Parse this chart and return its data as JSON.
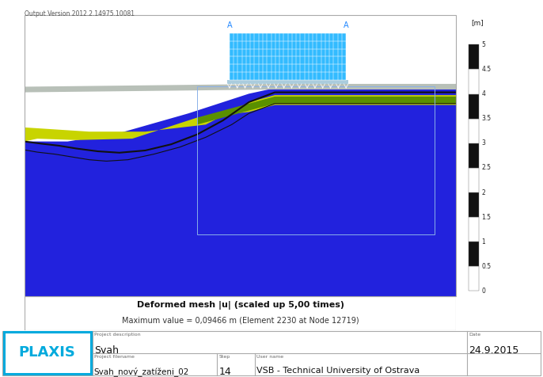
{
  "title_version": "Output Version 2012.2.14975.10081",
  "main_title_bold": "Deformed mesh |u| (scaled up 5,00 times)",
  "subtitle": "Maximum value = 0,09466 m (Element 2230 at Node 12719)",
  "scale_label": "[m]",
  "scale_ticks": [
    0,
    0.5,
    1,
    1.5,
    2,
    2.5,
    3,
    3.5,
    4,
    4.5,
    5
  ],
  "footer_project_desc_label": "Project description",
  "footer_project_desc": "Svah",
  "footer_filename_label": "Project filename",
  "footer_filename": "Svah_nový_zatíženi_02",
  "footer_step_label": "Step",
  "footer_step": "14",
  "footer_user_label": "User name",
  "footer_user": "VSB - Technical University of Ostrava",
  "footer_date_label": "Date",
  "footer_date": "24.9.2015",
  "bg_color": "#ffffff",
  "colors": {
    "blue_main": "#2222dd",
    "blue_load": "#33bbff",
    "yellow_green": "#c8d400",
    "green_layer": "#5a9000",
    "grey_layer": "#b8c0b8",
    "black_line": "#111111",
    "mesh_rect": "#8ab0e8"
  },
  "label_A_color": "#2288ff",
  "scale_bar_white": "#ffffff",
  "scale_bar_black": "#111111"
}
